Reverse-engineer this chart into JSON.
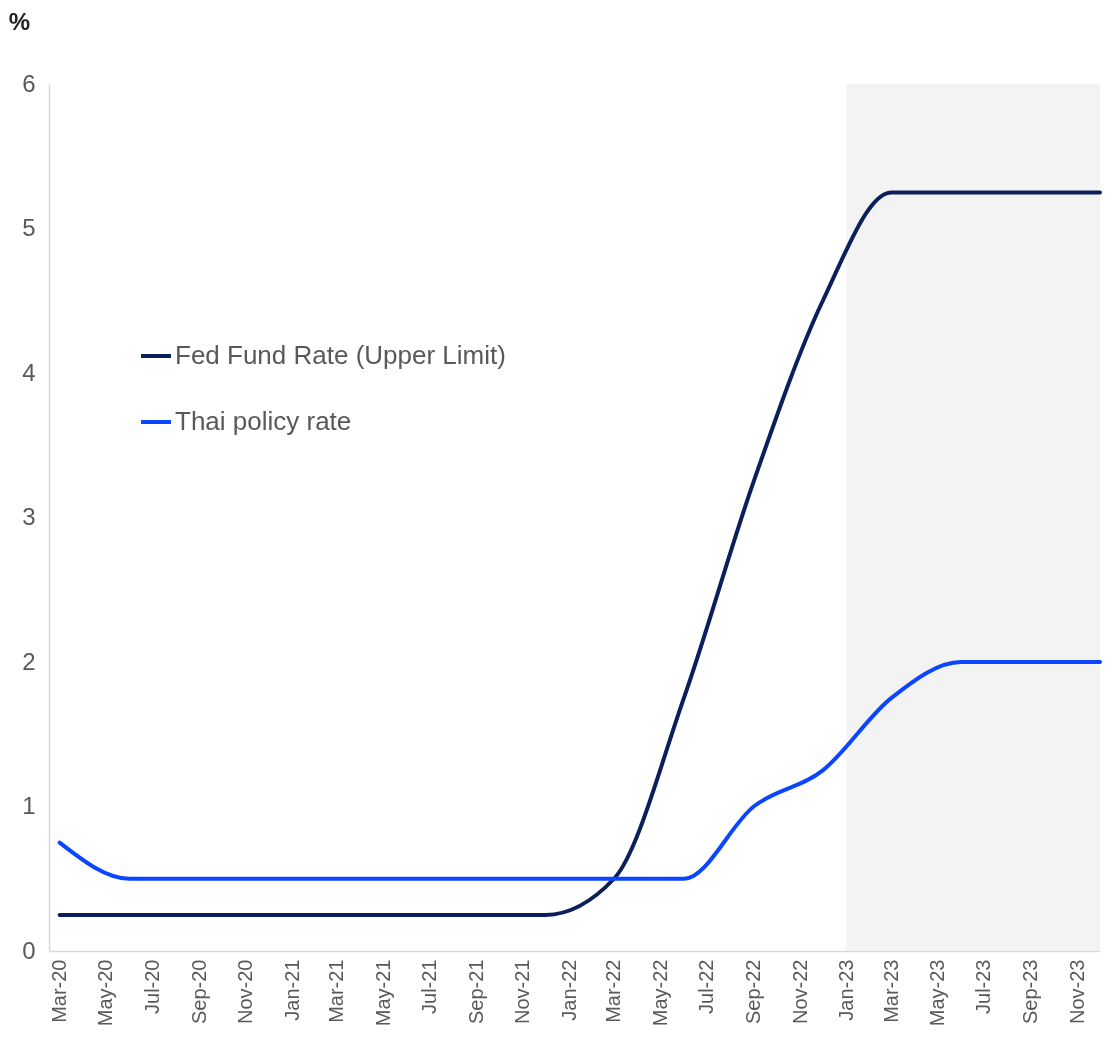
{
  "chart_data": {
    "type": "line",
    "ylabel": "%",
    "xlim": [
      "2020-02-16",
      "2023-12-01"
    ],
    "xticks": [
      {
        "value": "2020-03",
        "label": "Mar-20"
      },
      {
        "value": "2020-05",
        "label": "May-20"
      },
      {
        "value": "2020-07",
        "label": "Jul-20"
      },
      {
        "value": "2020-09",
        "label": "Sep-20"
      },
      {
        "value": "2020-11",
        "label": "Nov-20"
      },
      {
        "value": "2021-01",
        "label": "Jan-21"
      },
      {
        "value": "2021-03",
        "label": "Mar-21"
      },
      {
        "value": "2021-05",
        "label": "May-21"
      },
      {
        "value": "2021-07",
        "label": "Jul-21"
      },
      {
        "value": "2021-09",
        "label": "Sep-21"
      },
      {
        "value": "2021-11",
        "label": "Nov-21"
      },
      {
        "value": "2022-01",
        "label": "Jan-22"
      },
      {
        "value": "2022-03",
        "label": "Mar-22"
      },
      {
        "value": "2022-05",
        "label": "May-22"
      },
      {
        "value": "2022-07",
        "label": "Jul-22"
      },
      {
        "value": "2022-09",
        "label": "Sep-22"
      },
      {
        "value": "2022-11",
        "label": "Nov-22"
      },
      {
        "value": "2023-01",
        "label": "Jan-23"
      },
      {
        "value": "2023-03",
        "label": "Mar-23"
      },
      {
        "value": "2023-05",
        "label": "May-23"
      },
      {
        "value": "2023-07",
        "label": "Jul-23"
      },
      {
        "value": "2023-09",
        "label": "Sep-23"
      },
      {
        "value": "2023-11",
        "label": "Nov-23"
      }
    ],
    "ylim": [
      0,
      6
    ],
    "yticks": [
      0,
      1,
      2,
      3,
      4,
      5,
      6
    ],
    "x": [
      "2020-03",
      "2020-06",
      "2020-09",
      "2020-12",
      "2021-03",
      "2021-06",
      "2021-09",
      "2021-12",
      "2022-03",
      "2022-06",
      "2022-09",
      "2022-12",
      "2023-03",
      "2023-06",
      "2023-09",
      "2023-12"
    ],
    "series": [
      {
        "name": "Fed Fund Rate (Upper Limit)",
        "color": "#0b1f5a",
        "values": [
          0.25,
          0.25,
          0.25,
          0.25,
          0.25,
          0.25,
          0.25,
          0.25,
          0.5,
          1.75,
          3.25,
          4.5,
          5.25,
          5.25,
          5.25,
          5.25
        ]
      },
      {
        "name": "Thai policy rate",
        "color": "#0a46ff",
        "values": [
          0.75,
          0.5,
          0.5,
          0.5,
          0.5,
          0.5,
          0.5,
          0.5,
          0.5,
          0.5,
          1.0,
          1.25,
          1.75,
          2.0,
          2.0,
          2.0
        ]
      }
    ],
    "bands": [
      {
        "axis": "x",
        "from": "2023-01",
        "to": "2023-12",
        "color": "#f3f3f3"
      }
    ],
    "grid": false,
    "legend": "left"
  }
}
